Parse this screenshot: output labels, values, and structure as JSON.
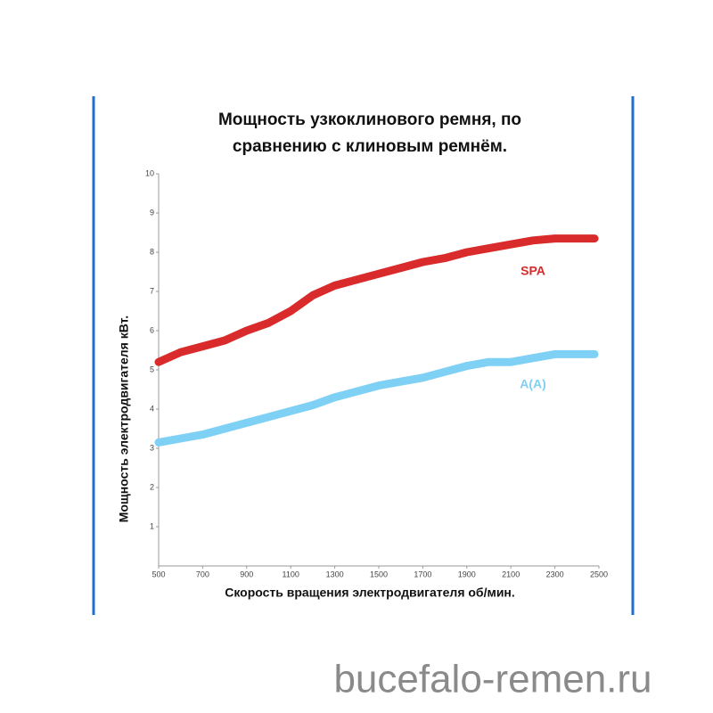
{
  "chart_data": {
    "type": "line",
    "title": [
      "Мощность узкоклинового ремня, по",
      "сравнению с клиновым ремнём."
    ],
    "x_label": "Скорость вращения электродвигателя об/мин.",
    "y_label": "Мощность электродвигателя кВт.",
    "x": [
      500,
      600,
      700,
      800,
      900,
      1000,
      1100,
      1200,
      1300,
      1400,
      1500,
      1600,
      1700,
      1800,
      1900,
      2000,
      2100,
      2200,
      2300,
      2400,
      2480
    ],
    "series": [
      {
        "name": "SPA",
        "color": "#d92b2b",
        "values": [
          5.2,
          5.45,
          5.6,
          5.75,
          6.0,
          6.2,
          6.5,
          6.9,
          7.15,
          7.3,
          7.45,
          7.6,
          7.75,
          7.85,
          8.0,
          8.1,
          8.2,
          8.3,
          8.35,
          8.35,
          8.35
        ]
      },
      {
        "name": "A(A)",
        "color": "#7fd0f5",
        "values": [
          3.15,
          3.25,
          3.35,
          3.5,
          3.65,
          3.8,
          3.95,
          4.1,
          4.3,
          4.45,
          4.6,
          4.7,
          4.8,
          4.95,
          5.1,
          5.2,
          5.2,
          5.3,
          5.4,
          5.4,
          5.4
        ]
      }
    ],
    "xlim": [
      500,
      2500
    ],
    "xticks": [
      500,
      700,
      900,
      1100,
      1300,
      1500,
      1700,
      1900,
      2100,
      2300,
      2500
    ],
    "ylim": [
      0,
      10
    ],
    "yticks": [
      1,
      2,
      3,
      4,
      5,
      6,
      7,
      8,
      9,
      10
    ],
    "grid": false
  },
  "watermark": "bucefalo-remen.ru"
}
